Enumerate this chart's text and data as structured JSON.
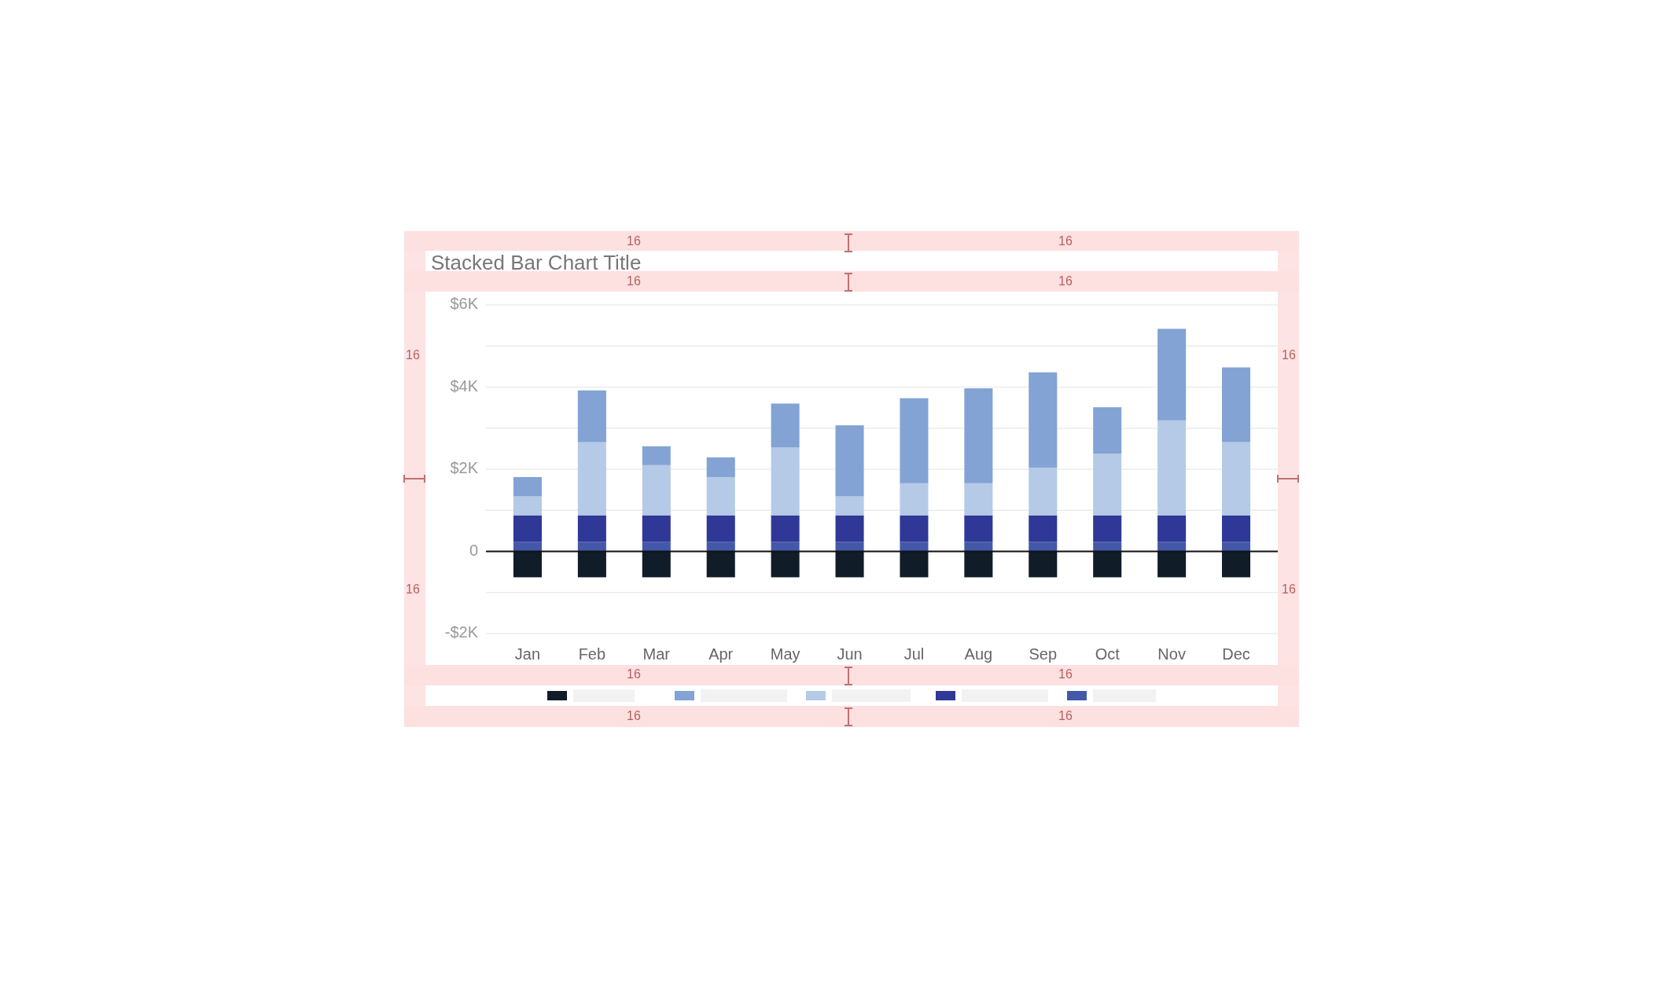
{
  "chart_data": {
    "type": "bar",
    "title": "Stacked Bar Chart Title",
    "categories": [
      "Jan",
      "Feb",
      "Mar",
      "Apr",
      "May",
      "Jun",
      "Jul",
      "Aug",
      "Sep",
      "Oct",
      "Nov",
      "Dec"
    ],
    "stacked": true,
    "series": [
      {
        "color": "#101c28",
        "values": [
          -630,
          -630,
          -630,
          -630,
          -630,
          -630,
          -630,
          -630,
          -630,
          -630,
          -630,
          -630
        ]
      },
      {
        "color": "#4358a8",
        "values": [
          230,
          230,
          230,
          230,
          230,
          230,
          230,
          230,
          230,
          230,
          230,
          230
        ]
      },
      {
        "color": "#2f3797",
        "values": [
          650,
          650,
          650,
          650,
          650,
          650,
          650,
          650,
          650,
          650,
          650,
          650
        ]
      },
      {
        "color": "#b5cae6",
        "values": [
          460,
          1780,
          1220,
          930,
          1650,
          460,
          780,
          780,
          1160,
          1500,
          2310,
          1780
        ]
      },
      {
        "color": "#82a3d3",
        "values": [
          470,
          1260,
          460,
          480,
          1070,
          1730,
          2070,
          2310,
          2320,
          1130,
          2230,
          1820
        ]
      }
    ],
    "ylim": [
      -2000,
      6000
    ],
    "yticks": [
      {
        "value": -2000,
        "label": "-$2K"
      },
      {
        "value": -1000,
        "label": null
      },
      0,
      {
        "value": 1000,
        "label": null
      },
      {
        "value": 2000,
        "label": "$2K"
      },
      {
        "value": 3000,
        "label": null
      },
      {
        "value": 4000,
        "label": "$4K"
      },
      {
        "value": 5000,
        "label": null
      },
      {
        "value": 6000,
        "label": "$6K"
      }
    ],
    "grid": "y",
    "annotations": [
      "16",
      "16",
      "16",
      "16",
      "16",
      "16",
      "16",
      "16",
      "16",
      "16",
      "16",
      "16"
    ]
  }
}
